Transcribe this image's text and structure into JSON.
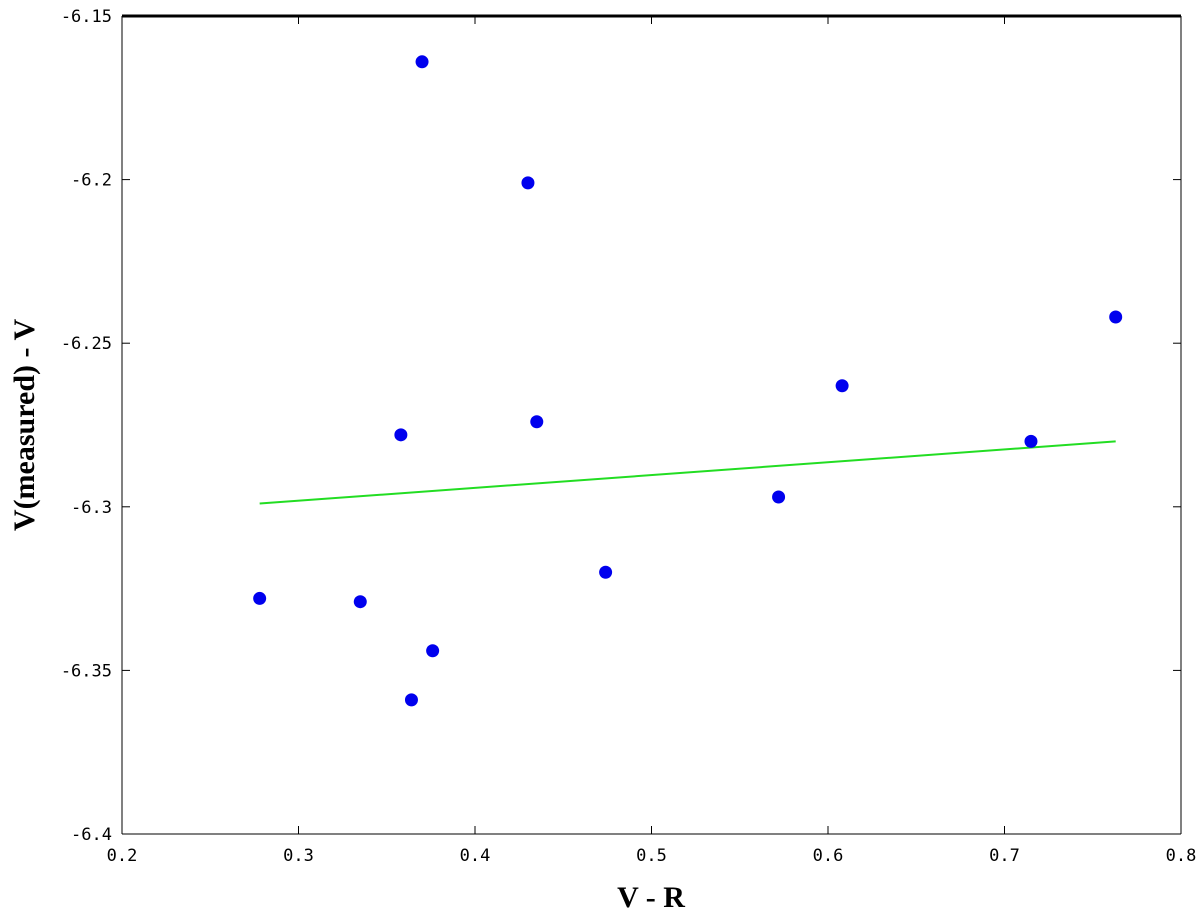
{
  "chart_data": {
    "type": "scatter",
    "xlabel": "V - R",
    "ylabel": "V(measured) - V",
    "xlim": [
      0.2,
      0.8
    ],
    "ylim": [
      -6.4,
      -6.15
    ],
    "x_ticks": [
      "0.2",
      "0.3",
      "0.4",
      "0.5",
      "0.6",
      "0.7",
      "0.8"
    ],
    "y_ticks": [
      "-6.15",
      "-6.2",
      "-6.25",
      "-6.3",
      "-6.35",
      "-6.4"
    ],
    "x_tick_values": [
      0.2,
      0.3,
      0.4,
      0.5,
      0.6,
      0.7,
      0.8
    ],
    "y_tick_values": [
      -6.15,
      -6.2,
      -6.25,
      -6.3,
      -6.35,
      -6.4
    ],
    "grid": false,
    "series": [
      {
        "type": "scatter",
        "color": "#0000ee",
        "points": [
          {
            "x": 0.278,
            "y": -6.328
          },
          {
            "x": 0.335,
            "y": -6.329
          },
          {
            "x": 0.358,
            "y": -6.278
          },
          {
            "x": 0.364,
            "y": -6.359
          },
          {
            "x": 0.37,
            "y": -6.164
          },
          {
            "x": 0.376,
            "y": -6.344
          },
          {
            "x": 0.43,
            "y": -6.201
          },
          {
            "x": 0.435,
            "y": -6.274
          },
          {
            "x": 0.474,
            "y": -6.32
          },
          {
            "x": 0.572,
            "y": -6.297
          },
          {
            "x": 0.608,
            "y": -6.263
          },
          {
            "x": 0.715,
            "y": -6.28
          },
          {
            "x": 0.763,
            "y": -6.242
          }
        ]
      },
      {
        "type": "line",
        "color": "#22dd22",
        "points": [
          {
            "x": 0.278,
            "y": -6.299
          },
          {
            "x": 0.763,
            "y": -6.28
          }
        ]
      }
    ]
  }
}
